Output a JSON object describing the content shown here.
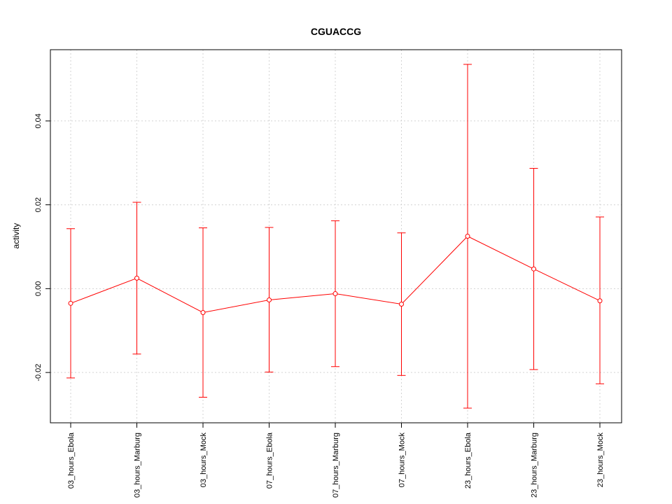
{
  "chart_data": {
    "type": "line",
    "title": "CGUACCG",
    "xlabel": "",
    "ylabel": "activity",
    "categories": [
      "03_hours_Ebola",
      "03_hours_Marburg",
      "03_hours_Mock",
      "07_hours_Ebola",
      "07_hours_Marburg",
      "07_hours_Mock",
      "23_hours_Ebola",
      "23_hours_Marburg",
      "23_hours_Mock"
    ],
    "series": [
      {
        "values": [
          -0.0035,
          0.0025,
          -0.0057,
          -0.0027,
          -0.0012,
          -0.0037,
          0.0125,
          0.0047,
          -0.0029
        ],
        "upper": [
          0.0143,
          0.0206,
          0.0145,
          0.0146,
          0.0162,
          0.0133,
          0.0535,
          0.0287,
          0.0171
        ],
        "lower": [
          -0.0213,
          -0.0156,
          -0.0259,
          -0.0199,
          -0.0186,
          -0.0207,
          -0.0285,
          -0.0193,
          -0.0227
        ],
        "color": "#ff0000"
      }
    ],
    "yticks": [
      -0.02,
      0.0,
      0.02,
      0.04
    ],
    "ytick_labels": [
      "-0.02",
      "0.00",
      "0.02",
      "0.04"
    ],
    "ylim": [
      -0.032,
      0.057
    ],
    "grid": true,
    "grid_color": "#d3d3d3"
  }
}
